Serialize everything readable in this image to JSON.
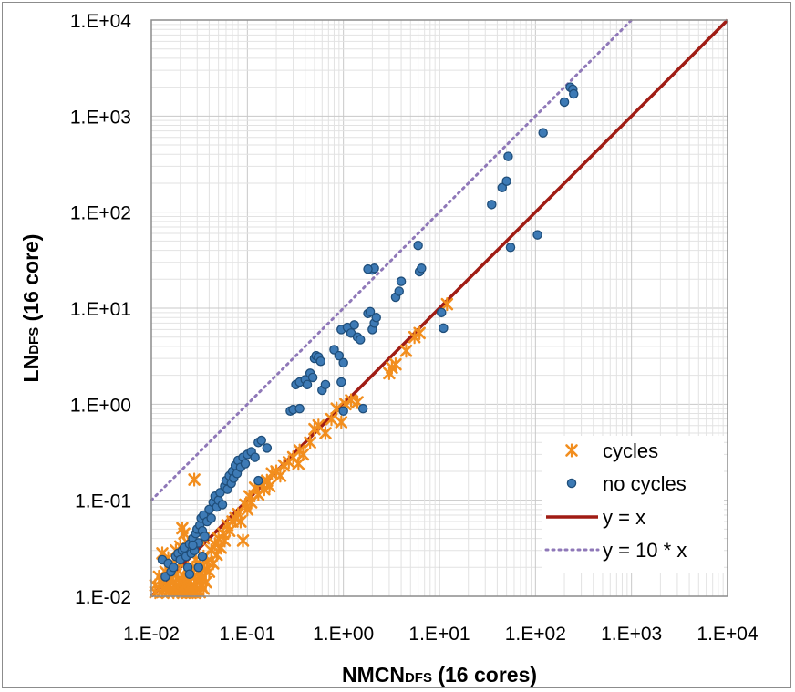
{
  "chart_data": {
    "type": "scatter",
    "x_scale": "log",
    "y_scale": "log",
    "xlim": [
      0.01,
      10000
    ],
    "ylim": [
      0.01,
      10000
    ],
    "x_ticks": [
      "1.E-02",
      "1.E-01",
      "1.E+00",
      "1.E+01",
      "1.E+02",
      "1.E+03",
      "1.E+04"
    ],
    "y_ticks": [
      "1.E-02",
      "1.E-01",
      "1.E+00",
      "1.E+01",
      "1.E+02",
      "1.E+03",
      "1.E+04"
    ],
    "xlabel": {
      "main": "NMCN",
      "sub": "DFS",
      "rest": " (16 cores)"
    },
    "ylabel": {
      "main": "LN",
      "sub": "DFS",
      "rest": " (16 core)"
    },
    "grid": true,
    "legend_position": "bottom-right",
    "colors": {
      "cycles": "#f28e1e",
      "no_cycles": "#2e6ea6",
      "identity": "#a01c14",
      "tenx": "#8f78b8"
    },
    "series": [
      {
        "name": "cycles",
        "marker": "star",
        "points": [
          [
            0.011,
            0.011
          ],
          [
            0.011,
            0.013
          ],
          [
            0.012,
            0.012
          ],
          [
            0.012,
            0.016
          ],
          [
            0.013,
            0.011
          ],
          [
            0.013,
            0.014
          ],
          [
            0.014,
            0.012
          ],
          [
            0.014,
            0.018
          ],
          [
            0.015,
            0.011
          ],
          [
            0.015,
            0.013
          ],
          [
            0.015,
            0.02
          ],
          [
            0.016,
            0.012
          ],
          [
            0.016,
            0.015
          ],
          [
            0.017,
            0.011
          ],
          [
            0.017,
            0.014
          ],
          [
            0.018,
            0.013
          ],
          [
            0.018,
            0.017
          ],
          [
            0.019,
            0.011
          ],
          [
            0.019,
            0.015
          ],
          [
            0.02,
            0.012
          ],
          [
            0.02,
            0.022
          ],
          [
            0.021,
            0.014
          ],
          [
            0.021,
            0.011
          ],
          [
            0.022,
            0.016
          ],
          [
            0.022,
            0.013
          ],
          [
            0.023,
            0.011
          ],
          [
            0.023,
            0.019
          ],
          [
            0.024,
            0.012
          ],
          [
            0.024,
            0.015
          ],
          [
            0.025,
            0.011
          ],
          [
            0.025,
            0.014
          ],
          [
            0.026,
            0.017
          ],
          [
            0.026,
            0.012
          ],
          [
            0.027,
            0.011
          ],
          [
            0.027,
            0.02
          ],
          [
            0.028,
            0.013
          ],
          [
            0.028,
            0.016
          ],
          [
            0.029,
            0.011
          ],
          [
            0.029,
            0.024
          ],
          [
            0.03,
            0.012
          ],
          [
            0.03,
            0.015
          ],
          [
            0.031,
            0.018
          ],
          [
            0.032,
            0.011
          ],
          [
            0.032,
            0.021
          ],
          [
            0.033,
            0.013
          ],
          [
            0.034,
            0.016
          ],
          [
            0.035,
            0.012
          ],
          [
            0.035,
            0.026
          ],
          [
            0.036,
            0.019
          ],
          [
            0.037,
            0.014
          ],
          [
            0.038,
            0.023
          ],
          [
            0.04,
            0.018
          ],
          [
            0.042,
            0.03
          ],
          [
            0.044,
            0.022
          ],
          [
            0.046,
            0.035
          ],
          [
            0.048,
            0.027
          ],
          [
            0.05,
            0.04
          ],
          [
            0.053,
            0.032
          ],
          [
            0.056,
            0.045
          ],
          [
            0.058,
            0.038
          ],
          [
            0.062,
            0.055
          ],
          [
            0.065,
            0.048
          ],
          [
            0.07,
            0.06
          ],
          [
            0.075,
            0.065
          ],
          [
            0.08,
            0.072
          ],
          [
            0.085,
            0.06
          ],
          [
            0.09,
            0.038
          ],
          [
            0.095,
            0.09
          ],
          [
            0.1,
            0.08
          ],
          [
            0.105,
            0.11
          ],
          [
            0.11,
            0.095
          ],
          [
            0.12,
            0.135
          ],
          [
            0.13,
            0.115
          ],
          [
            0.14,
            0.15
          ],
          [
            0.15,
            0.13
          ],
          [
            0.16,
            0.16
          ],
          [
            0.17,
            0.14
          ],
          [
            0.18,
            0.19
          ],
          [
            0.2,
            0.2
          ],
          [
            0.22,
            0.18
          ],
          [
            0.24,
            0.23
          ],
          [
            0.27,
            0.25
          ],
          [
            0.3,
            0.28
          ],
          [
            0.34,
            0.24
          ],
          [
            0.35,
            0.33
          ],
          [
            0.38,
            0.3
          ],
          [
            0.45,
            0.4
          ],
          [
            0.5,
            0.55
          ],
          [
            0.55,
            0.6
          ],
          [
            0.65,
            0.5
          ],
          [
            0.75,
            0.7
          ],
          [
            0.85,
            0.9
          ],
          [
            0.95,
            0.65
          ],
          [
            1.05,
            1.0
          ],
          [
            1.2,
            1.1
          ],
          [
            1.4,
            1.05
          ],
          [
            3.0,
            2.1
          ],
          [
            3.2,
            2.4
          ],
          [
            3.5,
            2.6
          ],
          [
            4.5,
            3.6
          ],
          [
            5.5,
            5.0
          ],
          [
            6.2,
            5.5
          ],
          [
            12.0,
            11.0
          ],
          [
            0.013,
            0.028
          ],
          [
            0.015,
            0.025
          ],
          [
            0.018,
            0.03
          ],
          [
            0.02,
            0.033
          ],
          [
            0.021,
            0.051
          ],
          [
            0.022,
            0.045
          ],
          [
            0.028,
            0.164
          ],
          [
            0.035,
            0.04
          ],
          [
            0.024,
            0.036
          ],
          [
            0.017,
            0.022
          ]
        ]
      },
      {
        "name": "no cycles",
        "marker": "circle",
        "points": [
          [
            0.013,
            0.024
          ],
          [
            0.014,
            0.016
          ],
          [
            0.015,
            0.022
          ],
          [
            0.016,
            0.018
          ],
          [
            0.017,
            0.02
          ],
          [
            0.018,
            0.026
          ],
          [
            0.019,
            0.028
          ],
          [
            0.02,
            0.024
          ],
          [
            0.021,
            0.03
          ],
          [
            0.022,
            0.032
          ],
          [
            0.023,
            0.026
          ],
          [
            0.024,
            0.02
          ],
          [
            0.025,
            0.035
          ],
          [
            0.026,
            0.028
          ],
          [
            0.027,
            0.04
          ],
          [
            0.028,
            0.03
          ],
          [
            0.029,
            0.045
          ],
          [
            0.03,
            0.05
          ],
          [
            0.031,
            0.036
          ],
          [
            0.032,
            0.055
          ],
          [
            0.033,
            0.065
          ],
          [
            0.034,
            0.048
          ],
          [
            0.035,
            0.07
          ],
          [
            0.036,
            0.042
          ],
          [
            0.038,
            0.06
          ],
          [
            0.04,
            0.08
          ],
          [
            0.042,
            0.065
          ],
          [
            0.044,
            0.095
          ],
          [
            0.046,
            0.11
          ],
          [
            0.048,
            0.085
          ],
          [
            0.05,
            0.1
          ],
          [
            0.052,
            0.12
          ],
          [
            0.055,
            0.09
          ],
          [
            0.058,
            0.14
          ],
          [
            0.06,
            0.16
          ],
          [
            0.062,
            0.13
          ],
          [
            0.065,
            0.18
          ],
          [
            0.068,
            0.15
          ],
          [
            0.07,
            0.2
          ],
          [
            0.072,
            0.17
          ],
          [
            0.075,
            0.23
          ],
          [
            0.078,
            0.19
          ],
          [
            0.08,
            0.26
          ],
          [
            0.085,
            0.22
          ],
          [
            0.09,
            0.28
          ],
          [
            0.095,
            0.24
          ],
          [
            0.1,
            0.3
          ],
          [
            0.11,
            0.32
          ],
          [
            0.12,
            0.28
          ],
          [
            0.13,
            0.4
          ],
          [
            0.14,
            0.42
          ],
          [
            0.16,
            0.35
          ],
          [
            0.28,
            0.85
          ],
          [
            0.3,
            0.88
          ],
          [
            0.32,
            1.6
          ],
          [
            0.35,
            1.7
          ],
          [
            0.4,
            1.8
          ],
          [
            0.42,
            1.6
          ],
          [
            0.45,
            2.1
          ],
          [
            0.48,
            1.9
          ],
          [
            0.5,
            3.0
          ],
          [
            0.52,
            3.2
          ],
          [
            0.55,
            3.1
          ],
          [
            0.58,
            2.8
          ],
          [
            0.6,
            1.4
          ],
          [
            0.65,
            1.6
          ],
          [
            0.8,
            3.7
          ],
          [
            0.9,
            3.2
          ],
          [
            0.95,
            6.0
          ],
          [
            1.0,
            2.7
          ],
          [
            1.1,
            6.3
          ],
          [
            1.2,
            5.5
          ],
          [
            1.3,
            6.7
          ],
          [
            1.4,
            5.0
          ],
          [
            1.5,
            4.7
          ],
          [
            1.8,
            8.8
          ],
          [
            1.9,
            9.2
          ],
          [
            2.0,
            6.0
          ],
          [
            2.1,
            7.0
          ],
          [
            2.2,
            8.0
          ],
          [
            2.0,
            25.0
          ],
          [
            2.1,
            26.0
          ],
          [
            3.5,
            13.0
          ],
          [
            3.8,
            15.0
          ],
          [
            4.0,
            19.0
          ],
          [
            6.0,
            45.0
          ],
          [
            6.2,
            24.0
          ],
          [
            6.5,
            26.0
          ],
          [
            10.5,
            9.0
          ],
          [
            11.0,
            6.2
          ],
          [
            1.8,
            25.5
          ],
          [
            1.6,
            0.9
          ],
          [
            1.0,
            0.85
          ],
          [
            0.95,
            1.7
          ],
          [
            0.35,
            0.9
          ],
          [
            0.13,
            0.16
          ],
          [
            35.0,
            120
          ],
          [
            45.0,
            180
          ],
          [
            50.0,
            210
          ],
          [
            52.0,
            380
          ],
          [
            55.0,
            43.0
          ],
          [
            105,
            58.0
          ],
          [
            120,
            670
          ],
          [
            200,
            1400
          ],
          [
            230,
            2000
          ],
          [
            245,
            1900
          ],
          [
            250,
            1700
          ],
          [
            0.025,
            0.017
          ],
          [
            0.027,
            0.034
          ],
          [
            0.031,
            0.02
          ],
          [
            0.034,
            0.026
          ]
        ]
      }
    ],
    "lines": [
      {
        "name": "y = x",
        "style": "solid",
        "factor": 1
      },
      {
        "name": "y = 10 * x",
        "style": "dotted",
        "factor": 10
      }
    ]
  }
}
